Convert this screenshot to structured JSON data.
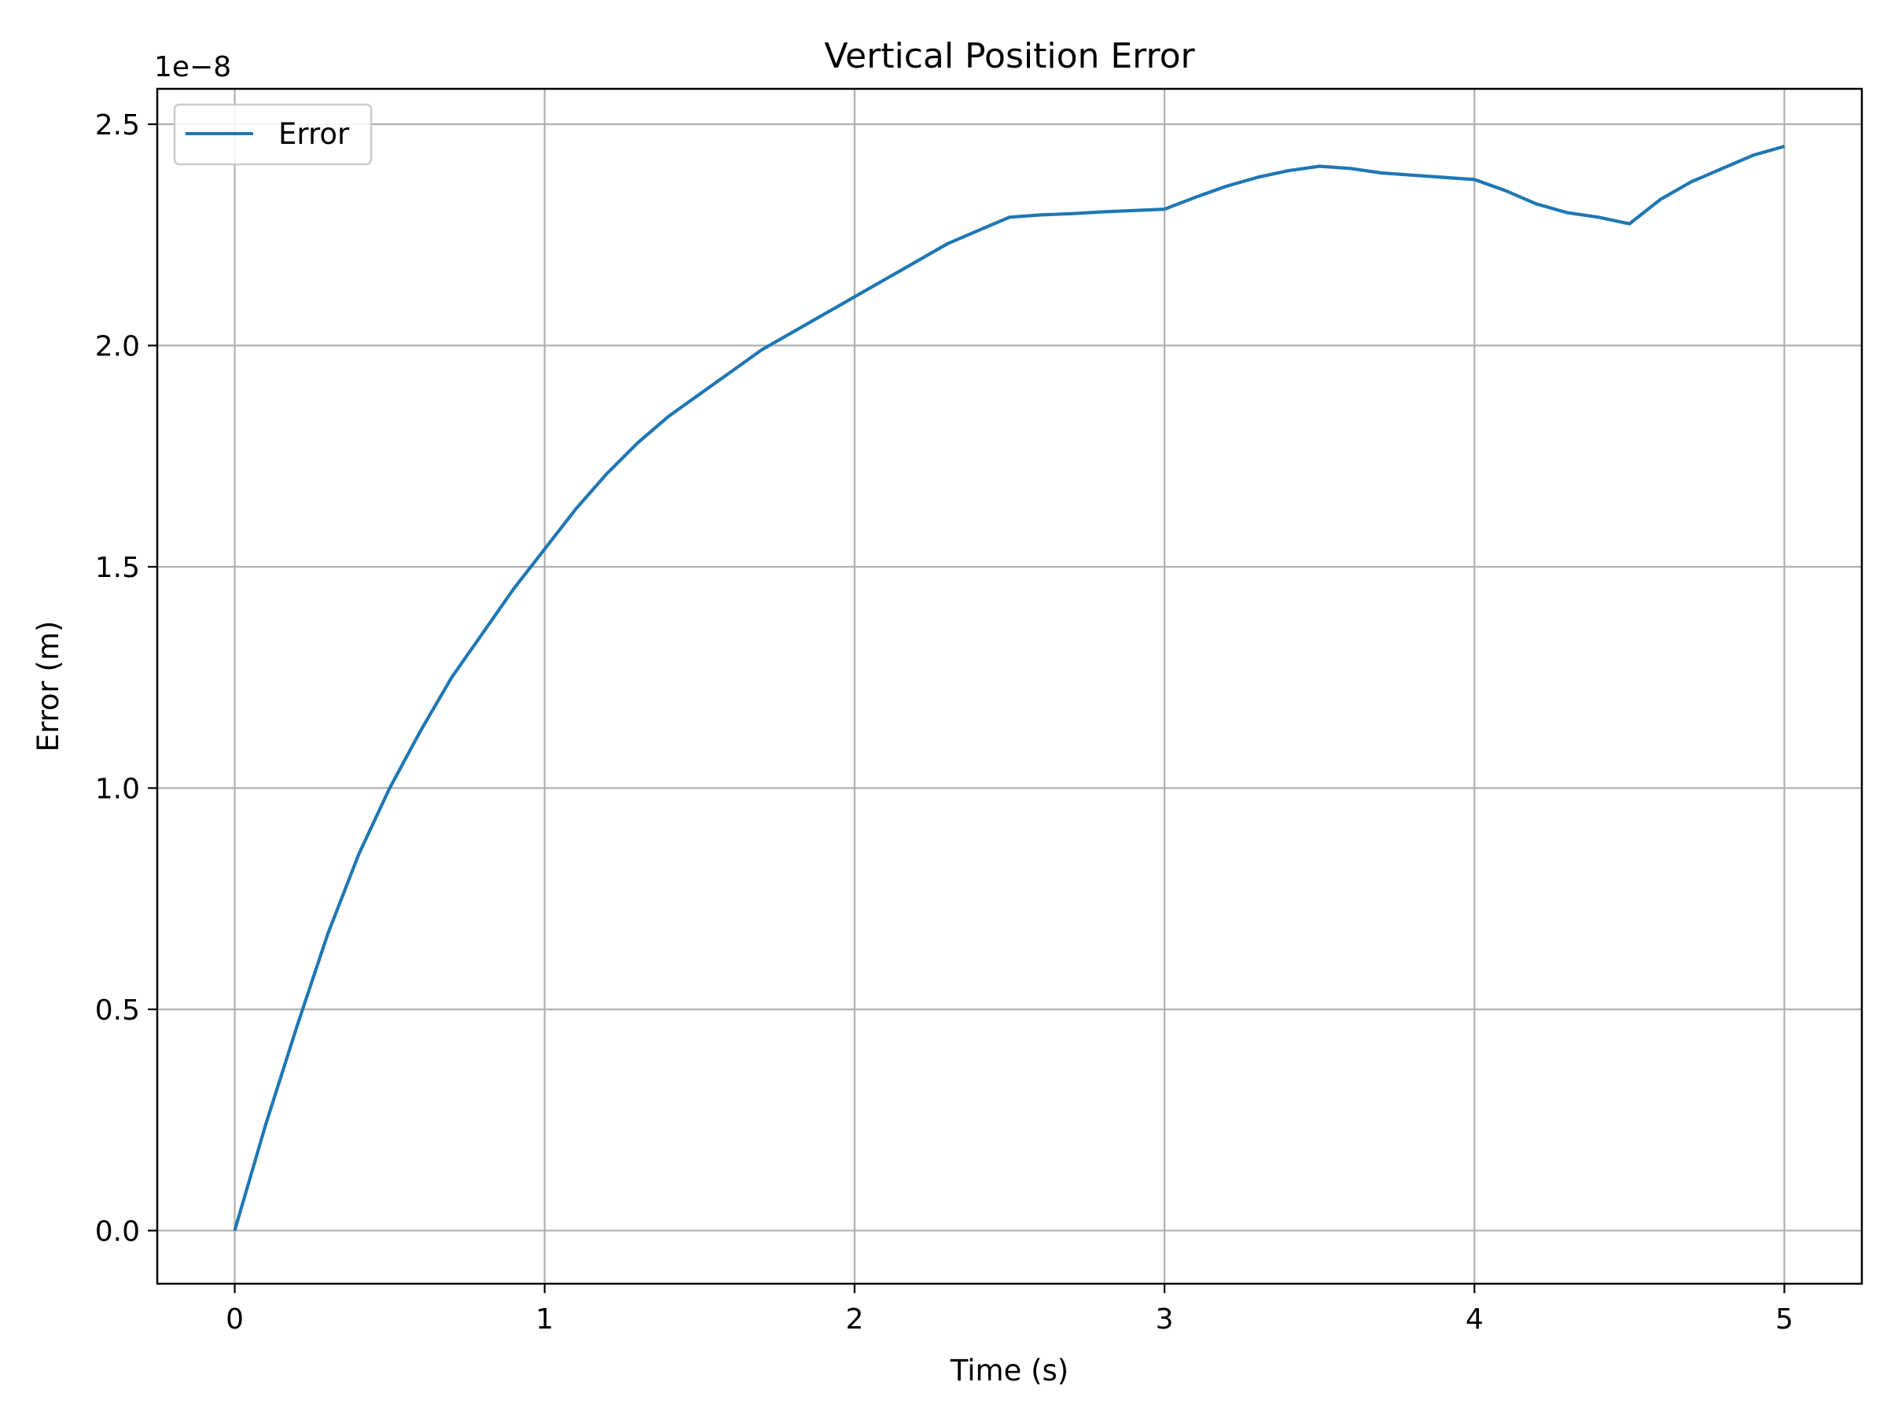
{
  "chart_data": {
    "type": "line",
    "title": "Vertical Position Error",
    "xlabel": "Time (s)",
    "ylabel": "Error (m)",
    "y_offset_label": "1e−8",
    "xlim": [
      -0.25,
      5.25
    ],
    "ylim": [
      -0.12,
      2.58
    ],
    "x_ticks": [
      0,
      1,
      2,
      3,
      4,
      5
    ],
    "x_tick_labels": [
      "0",
      "1",
      "2",
      "3",
      "4",
      "5"
    ],
    "y_ticks": [
      0.0,
      0.5,
      1.0,
      1.5,
      2.0,
      2.5
    ],
    "y_tick_labels": [
      "0.0",
      "0.5",
      "1.0",
      "1.5",
      "2.0",
      "2.5"
    ],
    "grid": true,
    "legend_position": "upper left",
    "series": [
      {
        "name": "Error",
        "color": "#1f77b4",
        "x": [
          0.0,
          0.1,
          0.2,
          0.3,
          0.4,
          0.5,
          0.6,
          0.7,
          0.8,
          0.9,
          1.0,
          1.1,
          1.2,
          1.3,
          1.4,
          1.5,
          1.6,
          1.7,
          1.8,
          1.9,
          2.0,
          2.1,
          2.2,
          2.3,
          2.4,
          2.5,
          2.6,
          2.7,
          2.8,
          2.9,
          3.0,
          3.1,
          3.2,
          3.3,
          3.4,
          3.5,
          3.6,
          3.7,
          3.8,
          3.9,
          4.0,
          4.1,
          4.2,
          4.3,
          4.4,
          4.5,
          4.6,
          4.7,
          4.8,
          4.9,
          5.0
        ],
        "y": [
          0.0,
          0.24,
          0.46,
          0.67,
          0.85,
          1.0,
          1.13,
          1.25,
          1.35,
          1.45,
          1.54,
          1.63,
          1.71,
          1.78,
          1.84,
          1.89,
          1.94,
          1.99,
          2.03,
          2.07,
          2.11,
          2.15,
          2.19,
          2.23,
          2.26,
          2.29,
          2.295,
          2.298,
          2.302,
          2.305,
          2.308,
          2.335,
          2.36,
          2.38,
          2.395,
          2.405,
          2.4,
          2.39,
          2.385,
          2.38,
          2.375,
          2.35,
          2.32,
          2.3,
          2.29,
          2.275,
          2.33,
          2.37,
          2.4,
          2.43,
          2.45
        ]
      }
    ]
  }
}
